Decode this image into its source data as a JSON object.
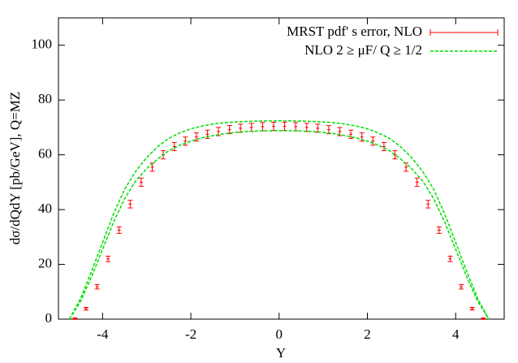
{
  "chart_data": {
    "type": "errorbar",
    "x_label": "Y",
    "y_label": "dσ/dQdY [pb/GeV], Q=MZ",
    "xlim": [
      -5,
      5.1
    ],
    "ylim": [
      0,
      110
    ],
    "xticks": [
      -4,
      -2,
      0,
      2,
      4
    ],
    "yticks": [
      0,
      20,
      40,
      60,
      80,
      100
    ],
    "legend": "upper right",
    "series": [
      {
        "name": "MRST pdf' s error, NLO",
        "color": "#ff0000",
        "x": [
          -4.625,
          -4.375,
          -4.125,
          -3.875,
          -3.625,
          -3.375,
          -3.125,
          -2.875,
          -2.625,
          -2.375,
          -2.125,
          -1.875,
          -1.625,
          -1.375,
          -1.125,
          -0.875,
          -0.625,
          -0.375,
          -0.125,
          0.125,
          0.375,
          0.625,
          0.875,
          1.125,
          1.375,
          1.625,
          1.875,
          2.125,
          2.375,
          2.625,
          2.875,
          3.125,
          3.375,
          3.625,
          3.875,
          4.125,
          4.375,
          4.625
        ],
        "values": [
          0.2,
          3.8,
          11.8,
          22,
          32.5,
          42,
          50,
          55.5,
          60,
          63,
          65,
          66.5,
          67.5,
          68.5,
          69.2,
          69.7,
          70,
          70.3,
          70.4,
          70.4,
          70.3,
          70,
          69.7,
          69.2,
          68.5,
          67.5,
          66.5,
          65,
          63,
          60,
          55.5,
          50,
          42,
          32.5,
          22,
          11.8,
          3.8,
          0.2
        ],
        "errors": [
          0.3,
          0.5,
          0.8,
          1,
          1.2,
          1.4,
          1.5,
          1.5,
          1.5,
          1.5,
          1.5,
          1.5,
          1.5,
          1.5,
          1.5,
          1.5,
          1.5,
          1.5,
          1.5,
          1.5,
          1.5,
          1.5,
          1.5,
          1.5,
          1.5,
          1.5,
          1.5,
          1.5,
          1.5,
          1.5,
          1.5,
          1.5,
          1.4,
          1.2,
          1,
          0.8,
          0.5,
          0.3
        ]
      },
      {
        "name": "NLO  2 ≥ μF/ Q ≥ 1/2",
        "color": "#00dd00",
        "x": [
          -4.75,
          -4.5,
          -4.25,
          -4,
          -3.75,
          -3.5,
          -3.25,
          -3,
          -2.75,
          -2.5,
          -2.25,
          -2,
          -1.75,
          -1.5,
          -1.25,
          -1,
          -0.75,
          -0.5,
          -0.25,
          0,
          0.25,
          0.5,
          0.75,
          1,
          1.25,
          1.5,
          1.75,
          2,
          2.25,
          2.5,
          2.75,
          3,
          3.25,
          3.5,
          3.75,
          4,
          4.25,
          4.5,
          4.75
        ],
        "upper": [
          0,
          7.5,
          17.5,
          28,
          38.5,
          47.5,
          54,
          59,
          63,
          66,
          68,
          69.5,
          70.5,
          71.2,
          71.7,
          72,
          72.2,
          72.3,
          72.4,
          72.4,
          72.4,
          72.3,
          72.2,
          72,
          71.7,
          71.2,
          70.5,
          69.5,
          68,
          66,
          63,
          59,
          54,
          47.5,
          38.5,
          28,
          17.5,
          7.5,
          0
        ],
        "lower": [
          0,
          6.5,
          15.5,
          25.5,
          35.5,
          44,
          50.5,
          55,
          58.5,
          61.5,
          63.5,
          65,
          66.2,
          67,
          67.7,
          68.2,
          68.5,
          68.7,
          68.8,
          68.8,
          68.8,
          68.7,
          68.5,
          68.2,
          67.7,
          67,
          66.2,
          65,
          63.5,
          61.5,
          58.5,
          55,
          50.5,
          44,
          35.5,
          25.5,
          15.5,
          6.5,
          0
        ]
      }
    ]
  }
}
